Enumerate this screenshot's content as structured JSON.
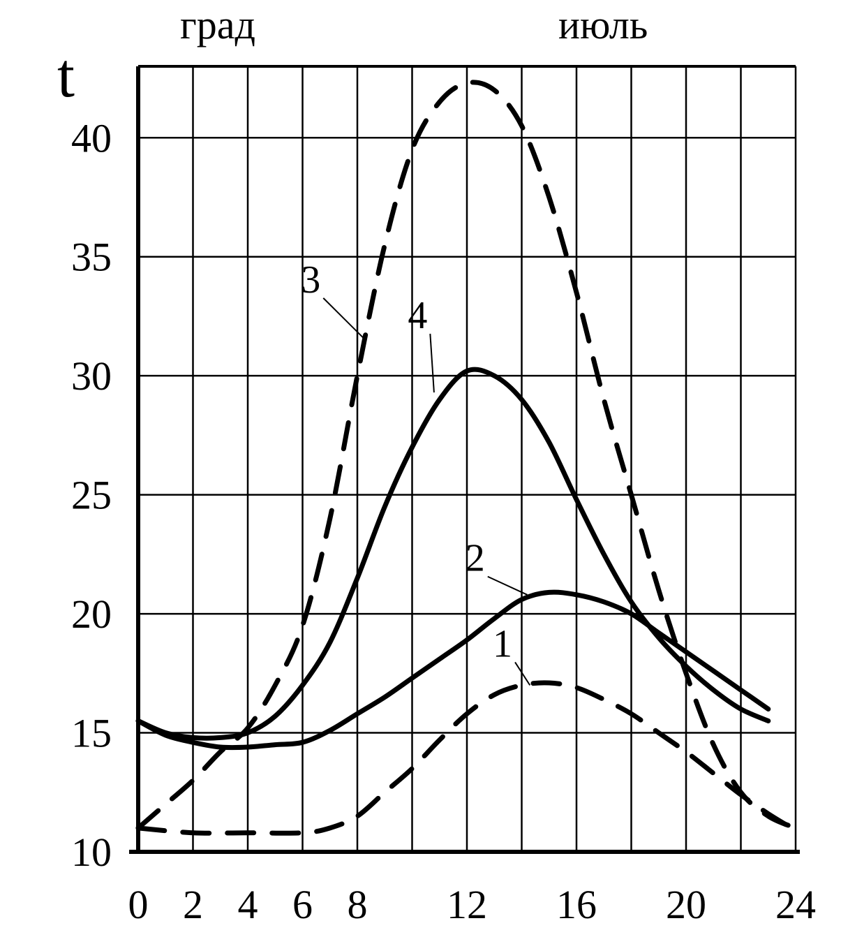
{
  "chart_data": {
    "type": "line",
    "title": "июль",
    "unit_label": "град",
    "ylabel": "t",
    "xlabel": "",
    "x_ticks": [
      "0",
      "2",
      "4",
      "6",
      "8",
      "12",
      "16",
      "20",
      "24"
    ],
    "y_ticks": [
      "10",
      "15",
      "20",
      "25",
      "30",
      "35",
      "40"
    ],
    "xlim": [
      0,
      24
    ],
    "ylim": [
      10,
      43
    ],
    "grid": true,
    "legend": "none",
    "series": [
      {
        "name": "1",
        "style": "dashed",
        "x": [
          0,
          2,
          4,
          6,
          7,
          8,
          9,
          10,
          11,
          12,
          13,
          14,
          15,
          16,
          17,
          18,
          19,
          20,
          21,
          22,
          23,
          24
        ],
        "y": [
          11.0,
          10.8,
          10.8,
          10.8,
          11.0,
          11.5,
          12.5,
          13.5,
          14.7,
          15.8,
          16.6,
          17.0,
          17.1,
          16.9,
          16.4,
          15.8,
          15.0,
          14.2,
          13.3,
          12.4,
          11.6,
          10.9
        ]
      },
      {
        "name": "2",
        "style": "solid",
        "x": [
          0,
          1,
          2,
          3,
          4,
          5,
          6,
          7,
          8,
          9,
          10,
          11,
          12,
          13,
          14,
          15,
          16,
          17,
          18,
          19,
          20,
          21,
          22,
          23
        ],
        "y": [
          15.5,
          14.9,
          14.6,
          14.4,
          14.4,
          14.5,
          14.6,
          15.1,
          15.8,
          16.5,
          17.3,
          18.1,
          18.9,
          19.8,
          20.6,
          20.9,
          20.8,
          20.5,
          20.0,
          19.2,
          18.4,
          17.6,
          16.8,
          16.0
        ]
      },
      {
        "name": "3",
        "style": "dashed",
        "x": [
          0,
          1,
          2,
          3,
          4,
          5,
          6,
          7,
          8,
          9,
          10,
          11,
          12,
          13,
          14,
          15,
          16,
          17,
          18,
          19,
          20,
          21,
          22,
          23,
          24
        ],
        "y": [
          11.0,
          12.0,
          13.0,
          14.2,
          15.2,
          17.0,
          19.5,
          24.0,
          30.0,
          35.5,
          39.5,
          41.5,
          42.3,
          42.0,
          40.5,
          37.5,
          33.5,
          29.0,
          25.0,
          21.0,
          17.5,
          14.5,
          12.5,
          11.5,
          11.0
        ]
      },
      {
        "name": "4",
        "style": "solid",
        "x": [
          0,
          1,
          2,
          3,
          4,
          5,
          6,
          7,
          8,
          9,
          10,
          11,
          12,
          13,
          14,
          15,
          16,
          17,
          18,
          19,
          20,
          21,
          22,
          23
        ],
        "y": [
          15.5,
          15.0,
          14.8,
          14.8,
          15.0,
          15.7,
          17.0,
          18.8,
          21.5,
          24.5,
          27.0,
          29.0,
          30.2,
          30.0,
          29.0,
          27.2,
          24.8,
          22.5,
          20.5,
          19.0,
          17.8,
          16.8,
          16.0,
          15.5
        ]
      }
    ],
    "curve_labels": [
      {
        "text": "1",
        "x": 13.3,
        "y": 18.2,
        "tx": 14.3,
        "ty": 17.0
      },
      {
        "text": "2",
        "x": 12.3,
        "y": 21.8,
        "tx": 14.2,
        "ty": 20.8
      },
      {
        "text": "3",
        "x": 6.3,
        "y": 33.5,
        "tx": 8.3,
        "ty": 31.5
      },
      {
        "text": "4",
        "x": 10.2,
        "y": 32.0,
        "tx": 10.8,
        "ty": 29.3
      }
    ]
  }
}
